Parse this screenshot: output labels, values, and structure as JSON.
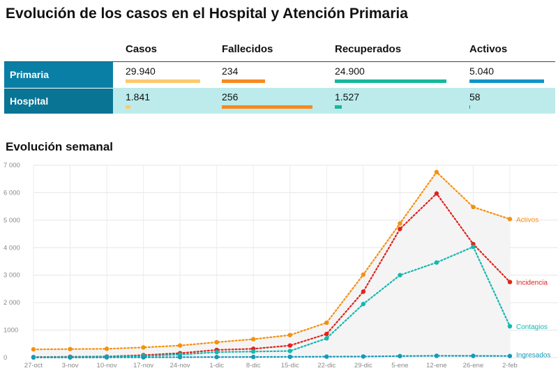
{
  "title": "Evolución de los casos en el Hospital y Atención Primaria",
  "table": {
    "columns": [
      "Casos",
      "Fallecidos",
      "Recuperados",
      "Activos"
    ],
    "rows": [
      {
        "label": "Primaria",
        "values": [
          "29.940",
          "234",
          "24.900",
          "5.040"
        ],
        "fill": [
          0.97,
          0.48,
          0.98,
          0.99
        ]
      },
      {
        "label": "Hospital",
        "values": [
          "1.841",
          "256",
          "1.527",
          "58"
        ],
        "fill": [
          0.06,
          1.0,
          0.06,
          0.01
        ]
      }
    ],
    "colors": [
      "#fdc96f",
      "#f68a1f",
      "#16b89c",
      "#0f95c8"
    ]
  },
  "subtitle": "Evolución semanal",
  "chart_data": {
    "type": "line",
    "categories": [
      "27-oct",
      "3-nov",
      "10-nov",
      "17-nov",
      "24-nov",
      "1-dic",
      "8-dic",
      "15-dic",
      "22-dic",
      "29-dic",
      "5-ene",
      "12-ene",
      "26-ene",
      "2-feb"
    ],
    "ylim": [
      0,
      7000
    ],
    "yticks": [
      0,
      1000,
      2000,
      3000,
      4000,
      5000,
      6000,
      7000
    ],
    "ytick_labels": [
      "0",
      "1000",
      "2 000",
      "3 000",
      "4 000",
      "5 000",
      "6 000",
      "7 000"
    ],
    "series": [
      {
        "name": "Activos",
        "color": "#f5900f",
        "values": [
          300,
          310,
          320,
          370,
          440,
          560,
          670,
          820,
          1270,
          3020,
          4880,
          6750,
          5480,
          5040
        ]
      },
      {
        "name": "Incidencia",
        "color": "#e0231d",
        "values": [
          20,
          30,
          40,
          90,
          160,
          280,
          320,
          440,
          860,
          2400,
          4680,
          5970,
          4130,
          2750
        ]
      },
      {
        "name": "Contagios",
        "color": "#14b8b0",
        "values": [
          15,
          20,
          30,
          60,
          110,
          200,
          220,
          240,
          700,
          1950,
          3000,
          3460,
          4030,
          1140
        ]
      },
      {
        "name": "Ingresados",
        "color": "#1599b8",
        "values": [
          5,
          5,
          8,
          10,
          15,
          20,
          22,
          28,
          35,
          40,
          55,
          65,
          62,
          58
        ]
      }
    ]
  }
}
